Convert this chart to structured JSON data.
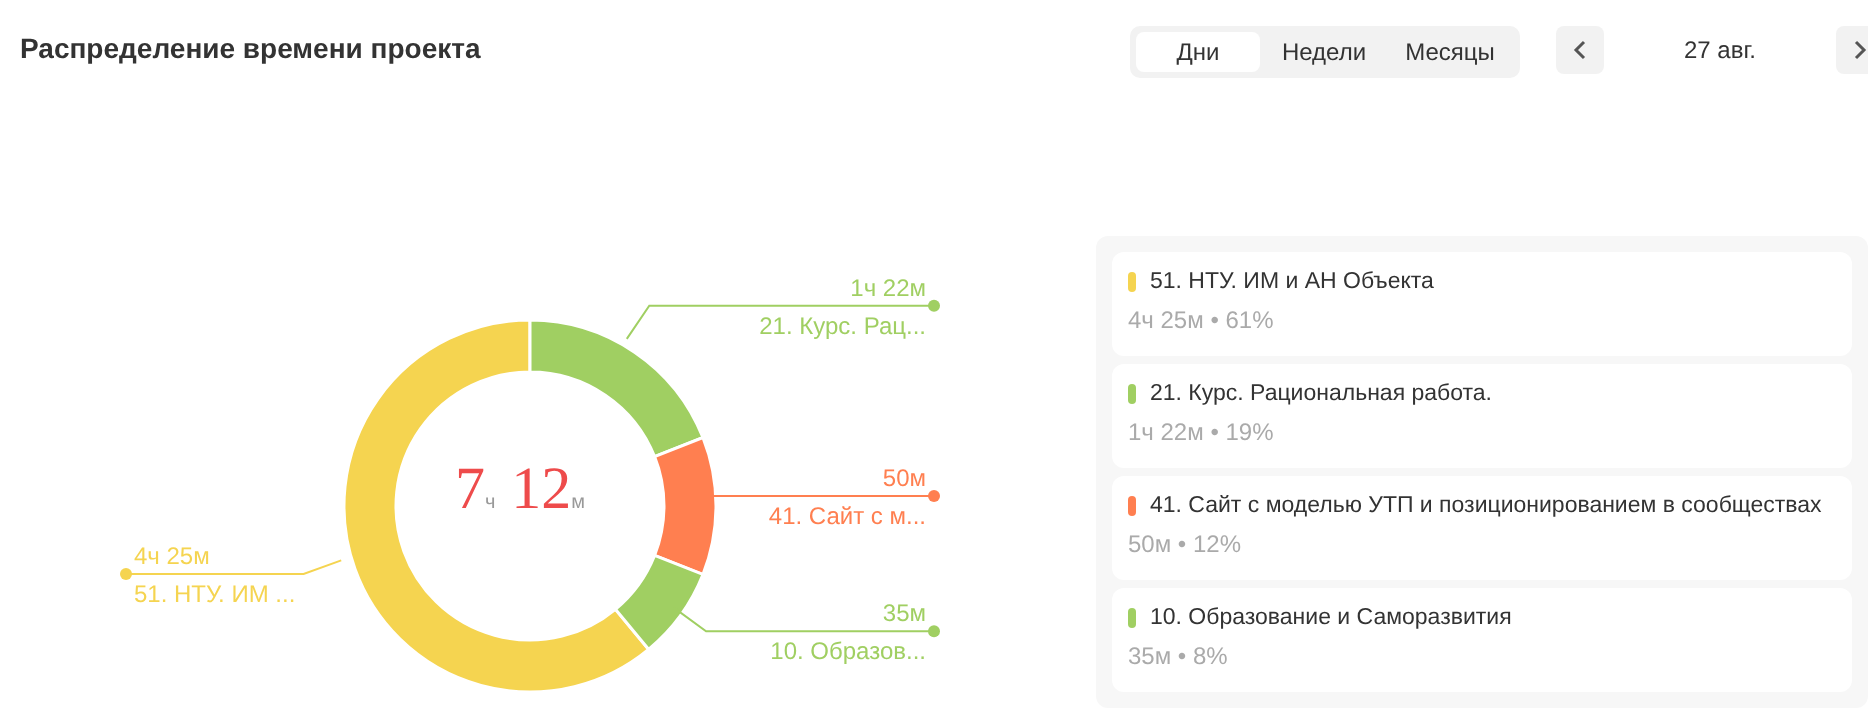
{
  "chart_data": {
    "type": "donut",
    "title": "Распределение времени проекта",
    "categories": [
      "51. НТУ. ИМ и АН Объекта",
      "21. Курс. Рациональная работа.",
      "41. Сайт с моделью УТП и позиционированием в сообществах",
      "10. Образование и Саморазвития"
    ],
    "values": [
      61,
      19,
      12,
      8
    ],
    "colors": [
      "#f5d450",
      "#a0cf62",
      "#ff7f50",
      "#a0cf62"
    ],
    "annotations": [
      "7ч 12м",
      "Дни",
      "Недели",
      "Месяцы",
      "27 авг.",
      "4ч 25м • 61%",
      "1ч 22м • 19%",
      "50м • 12%",
      "35м • 8%",
      "4ч 25м",
      "1ч 22м",
      "50м",
      "35м",
      "51. НТУ. ИМ ...",
      "21. Курс. Рац...",
      "41. Сайт с м...",
      "10. Образов..."
    ],
    "legend": "right"
  }
}
